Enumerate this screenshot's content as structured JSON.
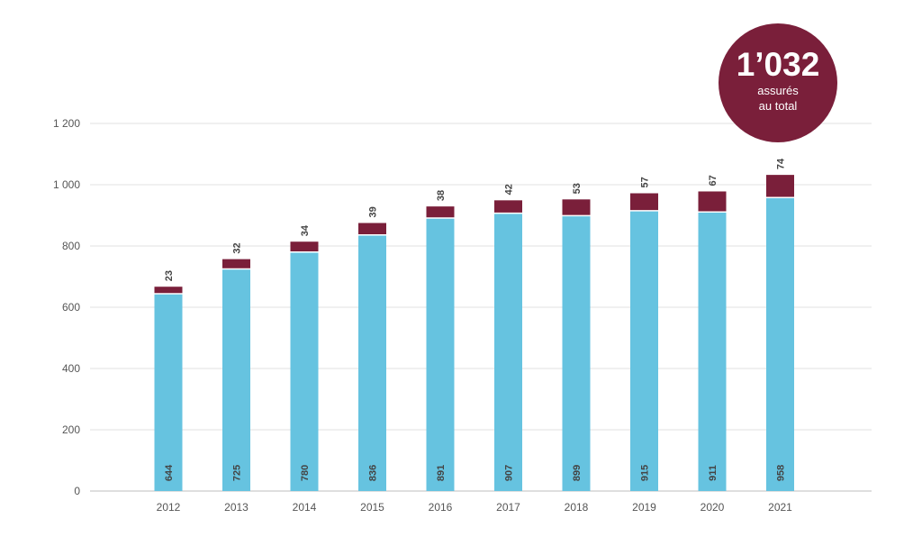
{
  "chart_data": {
    "type": "bar",
    "stacked": true,
    "categories": [
      "2012",
      "2013",
      "2014",
      "2015",
      "2016",
      "2017",
      "2018",
      "2019",
      "2020",
      "2021"
    ],
    "series": [
      {
        "values": [
          644,
          725,
          780,
          836,
          891,
          907,
          899,
          915,
          911,
          958
        ],
        "color": "#66c3e0"
      },
      {
        "values": [
          23,
          32,
          34,
          39,
          38,
          42,
          53,
          57,
          67,
          74
        ],
        "color": "#7a1f3a"
      }
    ],
    "ylim": [
      0,
      1200
    ],
    "yticks": [
      "0",
      "200",
      "400",
      "600",
      "800",
      "1 000",
      "1 200"
    ],
    "grid": true,
    "title": "",
    "xlabel": "",
    "ylabel": ""
  },
  "badge": {
    "value": "1’032",
    "line1": "assurés",
    "line2": "au total",
    "color": "#7a1f3a"
  }
}
